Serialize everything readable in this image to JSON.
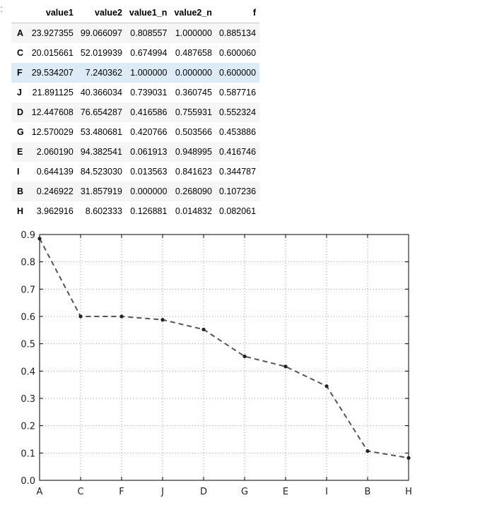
{
  "cell": {
    "prompt_mark": ":"
  },
  "table": {
    "columns": [
      "",
      "value1",
      "value2",
      "value1_n",
      "value2_n",
      "f"
    ],
    "rows": [
      {
        "index": "A",
        "cells": [
          "23.927355",
          "99.066097",
          "0.808557",
          "1.000000",
          "0.885134"
        ]
      },
      {
        "index": "C",
        "cells": [
          "20.015661",
          "52.019939",
          "0.674994",
          "0.487658",
          "0.600060"
        ]
      },
      {
        "index": "F",
        "cells": [
          "29.534207",
          "7.240362",
          "1.000000",
          "0.000000",
          "0.600000"
        ]
      },
      {
        "index": "J",
        "cells": [
          "21.891125",
          "40.366034",
          "0.739031",
          "0.360745",
          "0.587716"
        ]
      },
      {
        "index": "D",
        "cells": [
          "12.447608",
          "76.654287",
          "0.416586",
          "0.755931",
          "0.552324"
        ]
      },
      {
        "index": "G",
        "cells": [
          "12.570029",
          "53.480681",
          "0.420766",
          "0.503566",
          "0.453886"
        ]
      },
      {
        "index": "E",
        "cells": [
          "2.060190",
          "94.382541",
          "0.061913",
          "0.948995",
          "0.416746"
        ]
      },
      {
        "index": "I",
        "cells": [
          "0.644139",
          "84.523030",
          "0.013563",
          "0.841623",
          "0.344787"
        ]
      },
      {
        "index": "B",
        "cells": [
          "0.246922",
          "31.857919",
          "0.000000",
          "0.268090",
          "0.107236"
        ]
      },
      {
        "index": "H",
        "cells": [
          "3.962916",
          "8.602333",
          "0.126881",
          "0.014832",
          "0.082061"
        ]
      }
    ],
    "highlighted_row": "F"
  },
  "chart_data": {
    "type": "line",
    "categories": [
      "A",
      "C",
      "F",
      "J",
      "D",
      "G",
      "E",
      "I",
      "B",
      "H"
    ],
    "series": [
      {
        "values": [
          0.885134,
          0.60006,
          0.6,
          0.587716,
          0.552324,
          0.453886,
          0.416746,
          0.344787,
          0.107236,
          0.082061
        ]
      }
    ],
    "yticks": [
      "0.0",
      "0.1",
      "0.2",
      "0.3",
      "0.4",
      "0.5",
      "0.6",
      "0.7",
      "0.8",
      "0.9"
    ],
    "ylim": [
      0.0,
      0.9
    ],
    "grid": true,
    "line_style": "dashed",
    "line_color": "#555555",
    "marker_color": "#222222",
    "grid_color": "#9a9a9a",
    "title": "",
    "xlabel": "",
    "ylabel": ""
  }
}
